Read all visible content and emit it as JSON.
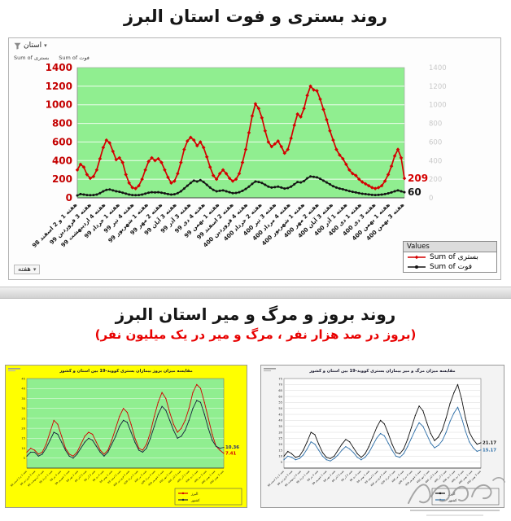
{
  "page": {
    "title1": "روند بستری و فوت استان البرز",
    "title2": "روند بروز و مرگ و میر استان البرز",
    "subtitle2": "(بروز در صد هزار نفر ، مرگ و میر در یک میلیون نفر)"
  },
  "top_chart_ui": {
    "filter_label": "استان",
    "axis_field_left": "Sum of بستری",
    "axis_field_right": "Sum of فوت",
    "x_field_label": "هفته",
    "legend_title": "Values"
  },
  "chart_data": [
    {
      "type": "line",
      "title": "روند بستری و فوت استان البرز",
      "plot_bg": "#90ee90",
      "ylim": [
        0,
        1400
      ],
      "ytick_step": 200,
      "axis_colors": {
        "left": "#c40000",
        "right": "#c9c9c9"
      },
      "x_tick_labels": [
        "هفته 1 و 2 اسفند 98",
        "هفته 3 فروردین 99",
        "هفته 4 اردیبهشت 99",
        "هفته 1 خرداد 99",
        "هفته 4 تیر 99",
        "هفته 1 شهریور 99",
        "هفته 2 مهر 99",
        "هفته 3 آبان 99",
        "هفته 3 آذر 99",
        "هفته 4 دی 99",
        "هفته 1 بهمن 99",
        "هفته 2 اسفند 99",
        "هفته 4 فروردین 400",
        "هفته 2 خرداد 400",
        "هفته 3 تیر 400",
        "هفته 4 مرداد 400",
        "هفته 1 شهریور 400",
        "هفته 2 مهر 400",
        "هفته 3 آبان 400",
        "هفته 1 آذر 400",
        "هفته 1 دی 400",
        "هفته 3 دی 400",
        "هفته 1 بهمن 400",
        "هفته 3 بهمن 400"
      ],
      "series": [
        {
          "name": "Sum of بستری",
          "color": "#d40000",
          "values": [
            300,
            360,
            330,
            250,
            210,
            230,
            300,
            420,
            540,
            620,
            590,
            500,
            410,
            430,
            380,
            250,
            160,
            110,
            100,
            130,
            200,
            300,
            390,
            430,
            400,
            420,
            380,
            300,
            220,
            160,
            180,
            260,
            380,
            520,
            610,
            650,
            620,
            560,
            600,
            540,
            440,
            330,
            240,
            200,
            260,
            300,
            260,
            210,
            180,
            200,
            260,
            380,
            520,
            700,
            880,
            1010,
            960,
            860,
            720,
            600,
            550,
            580,
            610,
            550,
            480,
            520,
            640,
            780,
            900,
            870,
            960,
            1100,
            1200,
            1160,
            1150,
            1060,
            950,
            840,
            720,
            620,
            520,
            460,
            420,
            360,
            300,
            260,
            240,
            200,
            170,
            150,
            130,
            110,
            100,
            110,
            130,
            180,
            250,
            340,
            450,
            520,
            430,
            209
          ]
        },
        {
          "name": "Sum of فوت",
          "color": "#141414",
          "values": [
            25,
            40,
            35,
            30,
            28,
            30,
            35,
            50,
            70,
            85,
            90,
            80,
            70,
            65,
            55,
            45,
            35,
            30,
            28,
            30,
            35,
            45,
            55,
            60,
            58,
            60,
            55,
            48,
            40,
            35,
            38,
            50,
            70,
            100,
            130,
            160,
            185,
            175,
            190,
            170,
            140,
            110,
            85,
            70,
            75,
            80,
            70,
            60,
            50,
            52,
            60,
            75,
            95,
            120,
            150,
            175,
            170,
            160,
            140,
            120,
            110,
            115,
            120,
            110,
            100,
            105,
            120,
            145,
            170,
            165,
            180,
            210,
            230,
            225,
            220,
            205,
            185,
            165,
            145,
            125,
            110,
            100,
            92,
            82,
            72,
            64,
            58,
            50,
            44,
            40,
            36,
            32,
            30,
            32,
            35,
            40,
            48,
            58,
            70,
            80,
            70,
            60
          ]
        }
      ],
      "end_labels": [
        {
          "text": "209",
          "value": 209,
          "color": "#d40000"
        },
        {
          "text": "60",
          "value": 60,
          "color": "#141414"
        }
      ]
    },
    {
      "type": "line",
      "title": "مقایسه میزان بروز بیماران بستری کووید-19 بین استان و کشور",
      "bg": "#ffff00",
      "plot_bg": "#90ee90",
      "ylim": [
        0,
        45
      ],
      "ytick_step": 5,
      "series": [
        {
          "name": "البرز",
          "color": "#d40000",
          "values": [
            8,
            10,
            9,
            7,
            8,
            12,
            18,
            24,
            22,
            16,
            10,
            7,
            6,
            8,
            12,
            16,
            18,
            17,
            13,
            9,
            7,
            9,
            14,
            20,
            26,
            30,
            28,
            22,
            15,
            10,
            9,
            12,
            18,
            26,
            33,
            38,
            35,
            28,
            22,
            18,
            20,
            24,
            30,
            38,
            42,
            40,
            33,
            25,
            17,
            11,
            9,
            7.41
          ]
        },
        {
          "name": "کشور",
          "color": "#16213e",
          "values": [
            6,
            8,
            8,
            6,
            7,
            10,
            14,
            18,
            17,
            13,
            9,
            6,
            5,
            7,
            10,
            13,
            15,
            14,
            11,
            8,
            6,
            8,
            12,
            16,
            21,
            24,
            23,
            18,
            13,
            9,
            8,
            10,
            15,
            21,
            27,
            31,
            29,
            24,
            19,
            15,
            16,
            19,
            24,
            30,
            34,
            33,
            27,
            20,
            14,
            11,
            10,
            10.36
          ]
        }
      ],
      "end_labels": [
        {
          "text": "10.36",
          "value": 10.36,
          "color": "#1f2a7a"
        },
        {
          "text": "7.41",
          "value": 7.41,
          "color": "#d40000"
        }
      ]
    },
    {
      "type": "line",
      "title": "مقایسه میزان مرگ و میر بیماران بستری کووید-19 بین استان و کشور",
      "bg": "#f3f3f3",
      "plot_bg": "#ffffff",
      "ylim": [
        0,
        75
      ],
      "ytick_step": 5,
      "series": [
        {
          "name": "البرز",
          "color": "#111111",
          "values": [
            10,
            14,
            12,
            9,
            10,
            15,
            22,
            30,
            28,
            20,
            13,
            9,
            8,
            10,
            15,
            20,
            24,
            22,
            17,
            12,
            9,
            12,
            18,
            26,
            34,
            40,
            37,
            29,
            20,
            13,
            12,
            16,
            24,
            34,
            44,
            52,
            48,
            38,
            29,
            23,
            26,
            32,
            42,
            54,
            63,
            70,
            58,
            42,
            30,
            24,
            20,
            21.17
          ]
        },
        {
          "name": "کشور",
          "color": "#2e6fa8",
          "values": [
            7,
            10,
            9,
            7,
            8,
            11,
            16,
            22,
            20,
            15,
            10,
            7,
            6,
            8,
            11,
            15,
            18,
            16,
            13,
            9,
            7,
            9,
            13,
            19,
            25,
            29,
            27,
            21,
            15,
            10,
            9,
            12,
            18,
            25,
            32,
            38,
            35,
            28,
            21,
            17,
            19,
            23,
            30,
            39,
            46,
            51,
            42,
            31,
            22,
            17,
            14,
            15.17
          ]
        }
      ],
      "end_labels": [
        {
          "text": "21.17",
          "value": 21.17,
          "color": "#111111"
        },
        {
          "text": "15.17",
          "value": 15.17,
          "color": "#2e6fa8"
        }
      ]
    }
  ]
}
